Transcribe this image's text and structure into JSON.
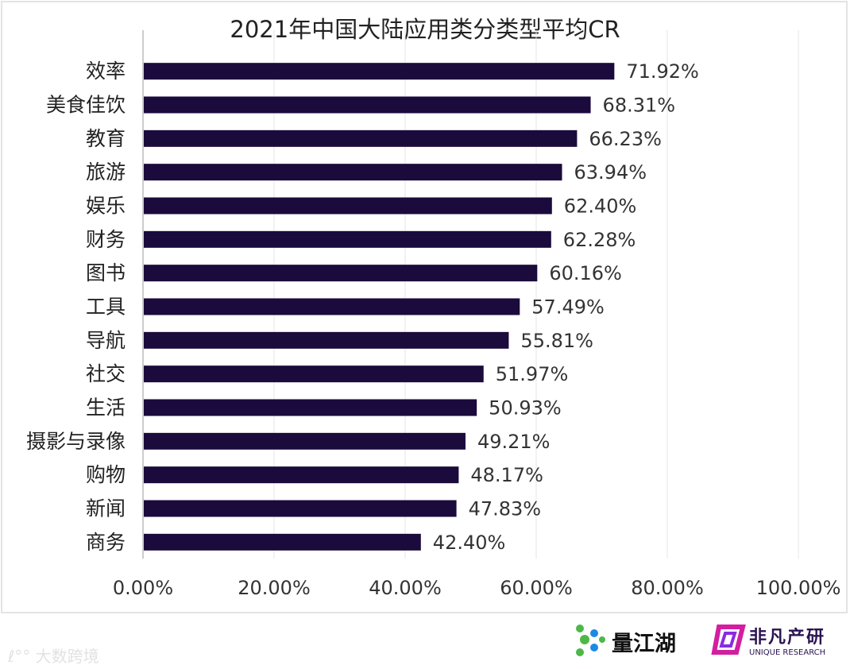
{
  "chart_data": {
    "type": "bar",
    "orientation": "horizontal",
    "title": "2021年中国大陆应用类分类型平均CR",
    "categories": [
      "效率",
      "美食佳饮",
      "教育",
      "旅游",
      "娱乐",
      "财务",
      "图书",
      "工具",
      "导航",
      "社交",
      "生活",
      "摄影与录像",
      "购物",
      "新闻",
      "商务"
    ],
    "values": [
      71.92,
      68.31,
      66.23,
      63.94,
      62.4,
      62.28,
      60.16,
      57.49,
      55.81,
      51.97,
      50.93,
      49.21,
      48.17,
      47.83,
      42.4
    ],
    "data_labels": [
      "71.92%",
      "68.31%",
      "66.23%",
      "63.94%",
      "62.40%",
      "62.28%",
      "60.16%",
      "57.49%",
      "55.81%",
      "51.97%",
      "50.93%",
      "49.21%",
      "48.17%",
      "47.83%",
      "42.40%"
    ],
    "xlim": [
      0,
      100
    ],
    "xticks": [
      "0.00%",
      "20.00%",
      "40.00%",
      "60.00%",
      "80.00%",
      "100.00%"
    ],
    "grid": "vertical",
    "bar_color": "#1b0a3c"
  },
  "logos": {
    "liangjianghu": "量江湖",
    "unique_cn": "非凡产研",
    "unique_en": "UNIQUE RESEARCH",
    "watermark": "大数跨境"
  }
}
